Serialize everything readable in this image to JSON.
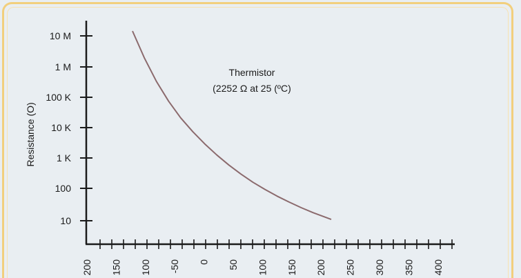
{
  "chart_data": {
    "type": "line",
    "title": "",
    "annotation_line1": "Thermistor",
    "annotation_line2": "(2252 Ω at 25 (ºC)",
    "ylabel": "Resistance (O)",
    "xlabel": "",
    "y_ticks": [
      "10 M",
      "1 M",
      "100 K",
      "10 K",
      "1 K",
      "100",
      "10"
    ],
    "x_ticks": [
      "200",
      "150",
      "100",
      "-50",
      "0",
      "50",
      "100",
      "150",
      "200",
      "250",
      "300",
      "350",
      "400"
    ],
    "y_scale": "log",
    "series": [
      {
        "x": [
          -120,
          -100,
          -80,
          -60,
          -40,
          -20,
          0,
          20,
          40,
          60,
          80,
          100,
          120,
          140,
          160,
          180,
          200,
          210
        ],
        "y": [
          10000000,
          1370000,
          250000,
          60000,
          18000,
          6600,
          2700,
          1200,
          580,
          300,
          165,
          98,
          60,
          39,
          26,
          18,
          13,
          11
        ]
      }
    ],
    "curve_color": "#8b6a6d",
    "axis_color": "#1a1a1a"
  }
}
